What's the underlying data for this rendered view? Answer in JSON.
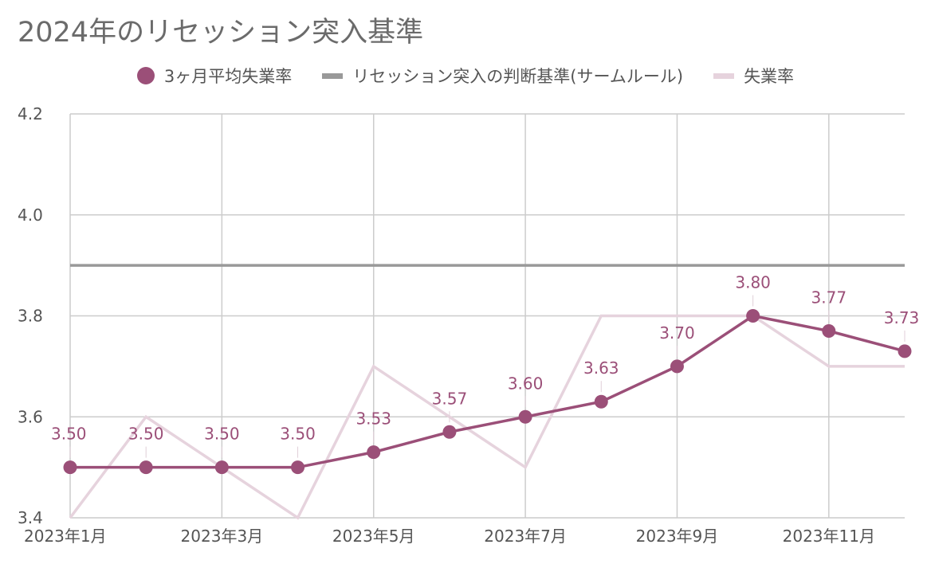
{
  "chart_data": {
    "type": "line",
    "title": "2024年のリセッション突入基準",
    "x": [
      "2023年1月",
      "2023年2月",
      "2023年3月",
      "2023年4月",
      "2023年5月",
      "2023年6月",
      "2023年7月",
      "2023年8月",
      "2023年9月",
      "2023年10月",
      "2023年11月",
      "2023年12月"
    ],
    "x_tick_labels": [
      "2023年1月",
      "2023年3月",
      "2023年5月",
      "2023年7月",
      "2023年9月",
      "2023年11月"
    ],
    "y_tick_labels": [
      "3.4",
      "3.6",
      "3.8",
      "4.0",
      "4.2"
    ],
    "ylim": [
      3.4,
      4.2
    ],
    "grid": true,
    "legend_position": "top",
    "series": [
      {
        "name": "3ヶ月平均失業率",
        "color": "#9b4f78",
        "marker": "circle",
        "values": [
          3.5,
          3.5,
          3.5,
          3.5,
          3.53,
          3.57,
          3.6,
          3.63,
          3.7,
          3.8,
          3.77,
          3.73
        ],
        "labels": [
          "3.50",
          "3.50",
          "3.50",
          "3.50",
          "3.53",
          "3.57",
          "3.60",
          "3.63",
          "3.70",
          "3.80",
          "3.77",
          "3.73"
        ]
      },
      {
        "name": "リセッション突入の判断基準(サームルール)",
        "color": "#999999",
        "marker": "none",
        "values": [
          3.9,
          3.9,
          3.9,
          3.9,
          3.9,
          3.9,
          3.9,
          3.9,
          3.9,
          3.9,
          3.9,
          3.9
        ]
      },
      {
        "name": "失業率",
        "color": "#e6d3dd",
        "marker": "none",
        "values": [
          3.4,
          3.6,
          3.5,
          3.4,
          3.7,
          3.6,
          3.5,
          3.8,
          3.8,
          3.8,
          3.7,
          3.7
        ]
      }
    ]
  }
}
